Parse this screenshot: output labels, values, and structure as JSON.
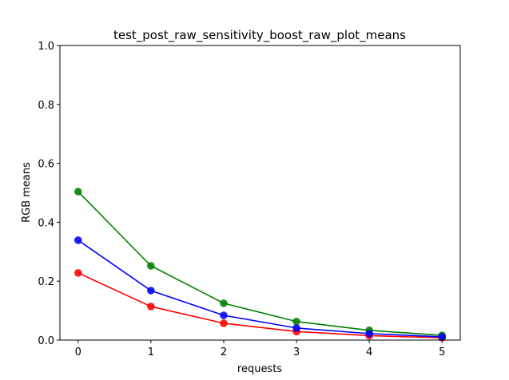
{
  "chart_data": {
    "type": "line",
    "title": "test_post_raw_sensitivity_boost_raw_plot_means",
    "xlabel": "requests",
    "ylabel": "RGB means",
    "x": [
      0,
      1,
      2,
      3,
      4,
      5
    ],
    "xlim": [
      -0.25,
      5.25
    ],
    "ylim": [
      0,
      1.0
    ],
    "xticks": [
      "0",
      "1",
      "2",
      "3",
      "4",
      "5"
    ],
    "yticks": [
      "0.0",
      "0.2",
      "0.4",
      "0.6",
      "0.8",
      "1.0"
    ],
    "grid": false,
    "series": [
      {
        "color": "#ff0000",
        "marker": "circle",
        "values": [
          0.228,
          0.114,
          0.057,
          0.029,
          0.015,
          0.008
        ]
      },
      {
        "color": "#008000",
        "marker": "circle",
        "values": [
          0.504,
          0.252,
          0.125,
          0.063,
          0.033,
          0.016
        ]
      },
      {
        "color": "#0000ff",
        "marker": "circle",
        "values": [
          0.339,
          0.168,
          0.084,
          0.041,
          0.022,
          0.011
        ]
      }
    ]
  }
}
